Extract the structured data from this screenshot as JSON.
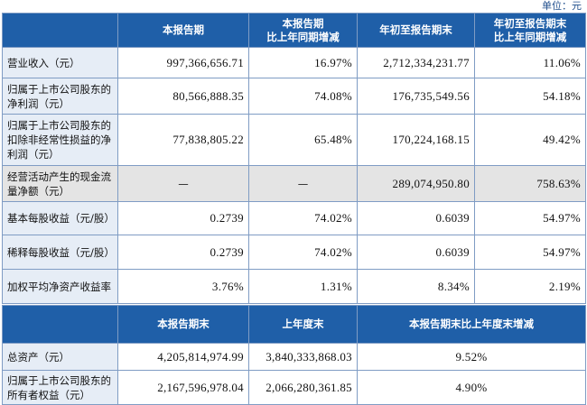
{
  "header": {
    "unit": "单位：元"
  },
  "table": {
    "columns": [
      "",
      "本报告期",
      "本报告期\n比上年同期增减",
      "年初至报告期末",
      "年初至报告期末\n比上年同期增减"
    ],
    "rows": [
      [
        "营业收入（元）",
        "997,366,656.71",
        "16.97%",
        "2,712,334,231.77",
        "11.06%"
      ],
      [
        "归属于上市公司股东的净利润（元）",
        "80,566,888.35",
        "74.08%",
        "176,735,549.56",
        "54.18%"
      ],
      [
        "归属于上市公司股东的扣除非经常性损益的净利润（元）",
        "77,838,805.22",
        "65.48%",
        "170,224,168.15",
        "49.42%"
      ],
      [
        "经营活动产生的现金流量净额（元）",
        "—",
        "—",
        "289,074,950.80",
        "758.63%"
      ],
      [
        "基本每股收益（元/股）",
        "0.2739",
        "74.02%",
        "0.6039",
        "54.97%"
      ],
      [
        "稀释每股收益（元/股）",
        "0.2739",
        "74.02%",
        "0.6039",
        "54.97%"
      ],
      [
        "加权平均净资产收益率",
        "3.76%",
        "1.31%",
        "8.34%",
        "2.19%"
      ]
    ]
  },
  "table2": {
    "columns": [
      "",
      "本报告期末",
      "上年度末",
      "本报告期末比上年度末增减"
    ],
    "rows": [
      [
        "总资产（元）",
        "4,205,814,974.99",
        "3,840,333,868.03",
        "9.52%"
      ],
      [
        "归属于上市公司股东的所有者权益（元）",
        "2,167,596,978.04",
        "2,066,280,361.85",
        "4.90%"
      ]
    ]
  }
}
